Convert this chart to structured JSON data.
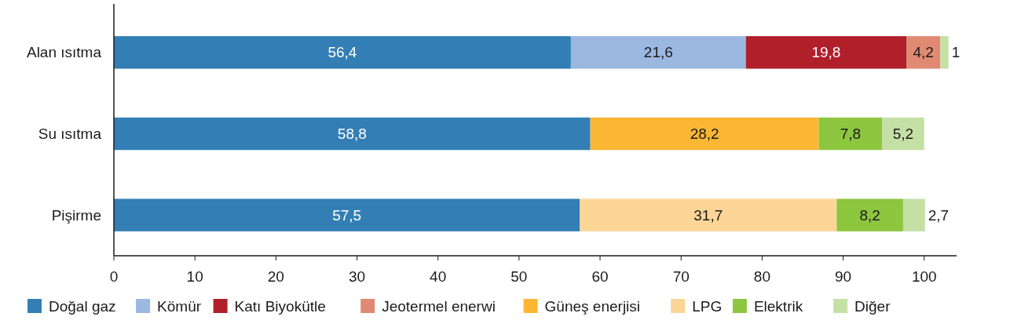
{
  "chart_data": {
    "type": "bar",
    "orientation": "horizontal",
    "stacked": true,
    "legend": "bottom",
    "grid": false,
    "categories": [
      "Alan ısıtma",
      "Su ısıtma",
      "Pişirme"
    ],
    "series": [
      {
        "name": "Doğal gaz",
        "color": "#337fb5",
        "values": [
          56.4,
          58.8,
          57.5
        ],
        "value_labels": [
          "56,4",
          "58,8",
          "57,5"
        ]
      },
      {
        "name": "Kömür",
        "color": "#9ab8e0",
        "values": [
          21.6,
          null,
          null
        ],
        "value_labels": [
          "21,6",
          null,
          null
        ]
      },
      {
        "name": "Katı Biyokütle",
        "color": "#b01f2a",
        "values": [
          19.8,
          null,
          null
        ],
        "value_labels": [
          "19,8",
          null,
          null
        ]
      },
      {
        "name": "Jeotermel enerwi",
        "color": "#e08a73",
        "values": [
          4.2,
          null,
          null
        ],
        "value_labels": [
          "4,2",
          null,
          null
        ]
      },
      {
        "name": "Güneş enerjisi",
        "color": "#fbb634",
        "values": [
          null,
          28.2,
          null
        ],
        "value_labels": [
          null,
          "28,2",
          null
        ]
      },
      {
        "name": "LPG",
        "color": "#fdd597",
        "values": [
          null,
          null,
          31.7
        ],
        "value_labels": [
          null,
          null,
          "31,7"
        ]
      },
      {
        "name": "Elektrik",
        "color": "#8dc63f",
        "values": [
          null,
          7.8,
          8.2
        ],
        "value_labels": [
          null,
          "7,8",
          "8,2"
        ]
      },
      {
        "name": "Diğer",
        "color": "#c5e0a5",
        "values": [
          1,
          5.2,
          2.7
        ],
        "value_labels": [
          "1",
          "5,2",
          "2,7"
        ]
      }
    ],
    "xlim": [
      0,
      104
    ],
    "xticks": [
      0,
      10,
      20,
      30,
      40,
      50,
      60,
      70,
      80,
      90,
      100
    ]
  }
}
